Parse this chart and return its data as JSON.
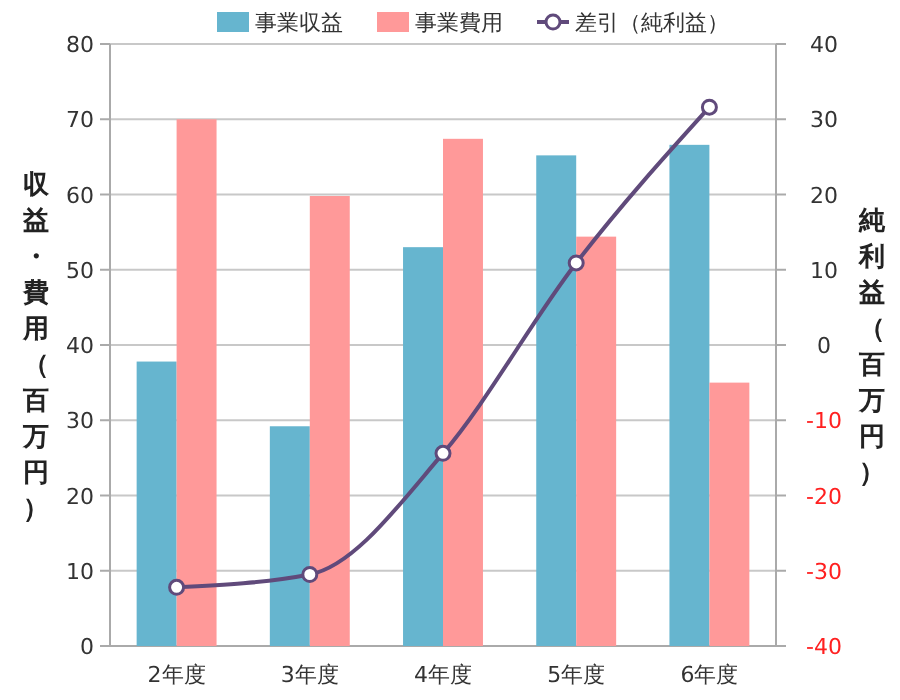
{
  "chart_data": {
    "type": "bar",
    "ylabel": "収益・費用（百万円）",
    "y2label": "純利益（百万円）",
    "categories": [
      "2年度",
      "3年度",
      "4年度",
      "5年度",
      "6年度"
    ],
    "series": [
      {
        "name": "事業収益",
        "color": "#66b5cf",
        "values": [
          37.8,
          29.2,
          53,
          65.2,
          66.6
        ]
      },
      {
        "name": "事業費用",
        "color": "#ff9999",
        "values": [
          70,
          59.8,
          67.4,
          54.4,
          35
        ]
      },
      {
        "name": "差引（純利益）",
        "type": "line",
        "axis": "y2",
        "color": "#604a7b",
        "marker": "circle",
        "values": [
          -32.2,
          -30.5,
          -14.4,
          10.9,
          31.6
        ]
      }
    ],
    "ylim": [
      0,
      80
    ],
    "yticks": [
      0,
      10,
      20,
      30,
      40,
      50,
      60,
      70,
      80
    ],
    "y2lim": [
      -40,
      40
    ],
    "y2ticks": [
      -40,
      -30,
      -20,
      -10,
      0,
      10,
      20,
      30,
      40
    ],
    "grid": "y",
    "legend": "top"
  }
}
